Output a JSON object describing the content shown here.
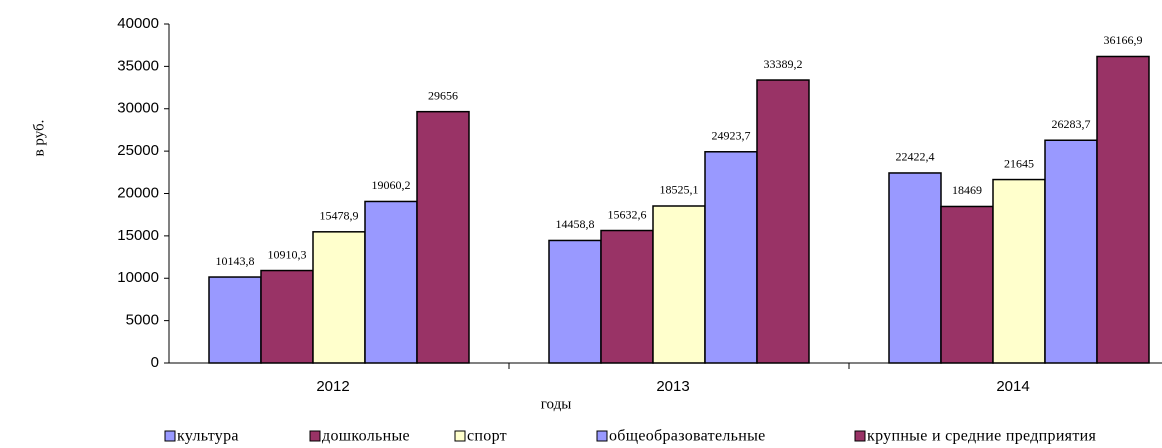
{
  "chart_data": {
    "type": "bar",
    "y_label": "в руб.",
    "x_label": "годы",
    "categories": [
      "2012",
      "2013",
      "2014"
    ],
    "series": [
      {
        "name": "культура",
        "color": "#9999ff",
        "values": [
          10143.8,
          14458.8,
          22422.4
        ],
        "value_labels": [
          "10143,8",
          "14458,8",
          "22422,4"
        ]
      },
      {
        "name": "дошкольные",
        "color": "#993366",
        "values": [
          10910.3,
          15632.6,
          18469
        ],
        "value_labels": [
          "10910,3",
          "15632,6",
          "18469"
        ]
      },
      {
        "name": "спорт",
        "color": "#ffffcc",
        "values": [
          15478.9,
          18525.1,
          21645
        ],
        "value_labels": [
          "15478,9",
          "18525,1",
          "21645"
        ]
      },
      {
        "name": "общеобразовательные",
        "color": "#9999ff",
        "values": [
          19060.2,
          24923.7,
          26283.7
        ],
        "value_labels": [
          "19060,2",
          "24923,7",
          "26283,7"
        ]
      },
      {
        "name": "крупные и средние предприятия",
        "color": "#993366",
        "values": [
          29656,
          33389.2,
          36166.9
        ],
        "value_labels": [
          "29656",
          "33389,2",
          "36166,9"
        ]
      }
    ],
    "ylim": [
      0,
      40000
    ],
    "yticks": [
      0,
      5000,
      10000,
      15000,
      20000,
      25000,
      30000,
      35000,
      40000
    ],
    "grid": false,
    "legend": "bottom"
  }
}
